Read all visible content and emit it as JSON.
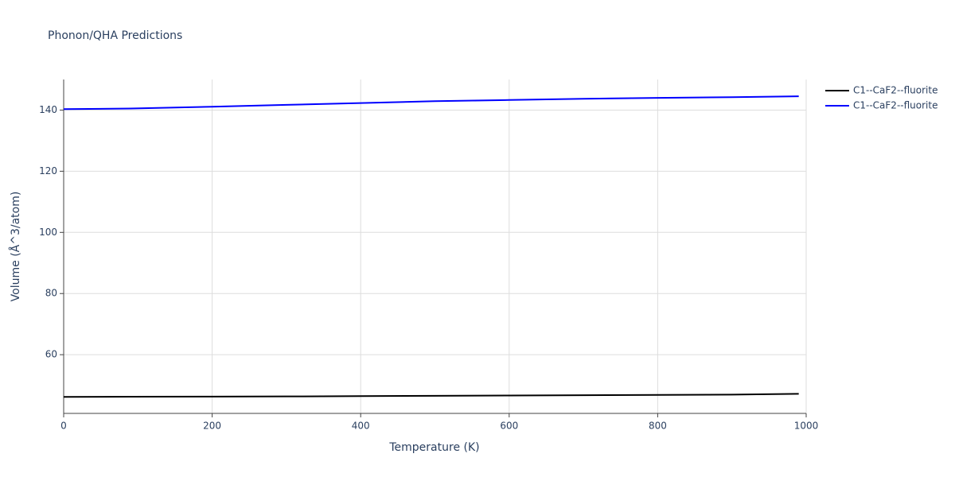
{
  "chart_data": {
    "type": "line",
    "title": "Phonon/QHA Predictions",
    "x_label": "Temperature (K)",
    "y_label": "Volume (Å^3/atom)",
    "x": [
      0,
      90,
      200,
      300,
      400,
      500,
      600,
      700,
      800,
      900,
      990
    ],
    "series": [
      {
        "name": "C1--CaF2--fluorite",
        "color": "#000000",
        "values": [
          46.2,
          46.25,
          46.3,
          46.35,
          46.45,
          46.55,
          46.65,
          46.75,
          46.85,
          46.95,
          47.2
        ]
      },
      {
        "name": "C1--CaF2--fluorite",
        "color": "#0000ff",
        "values": [
          140.3,
          140.5,
          141.1,
          141.7,
          142.3,
          142.9,
          143.3,
          143.7,
          144.0,
          144.2,
          144.5
        ]
      }
    ],
    "xlim": [
      0,
      1000
    ],
    "xticks": [
      0,
      200,
      400,
      600,
      800,
      1000
    ],
    "ylim": [
      40.8,
      150
    ],
    "yticks": [
      60,
      80,
      100,
      120,
      140
    ],
    "grid": true,
    "legend": "top-right"
  }
}
